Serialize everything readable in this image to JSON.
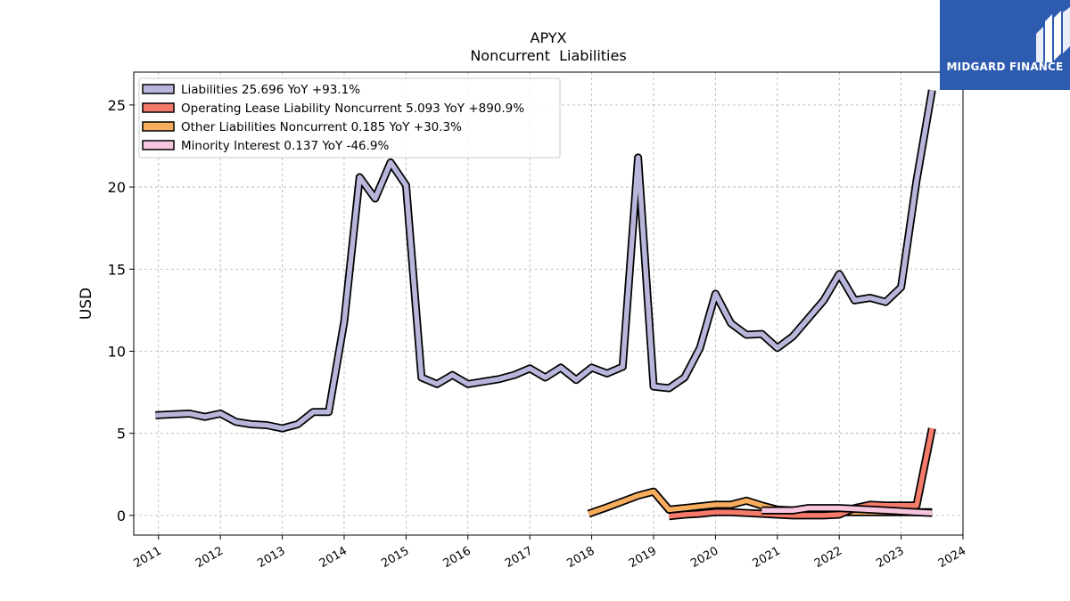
{
  "chart_data": {
    "type": "line",
    "title": "APYX",
    "subtitle": "Noncurrent  Liabilities",
    "ylabel": "USD",
    "xlabel": "",
    "xlim": [
      2010.6,
      2024.0
    ],
    "ylim": [
      -1.2,
      27.0
    ],
    "yticks": [
      0,
      5,
      10,
      15,
      20,
      25
    ],
    "xticks": [
      2011,
      2012,
      2013,
      2014,
      2015,
      2016,
      2017,
      2018,
      2019,
      2020,
      2021,
      2022,
      2023,
      2024
    ],
    "grid": true,
    "legend_position": "top-left",
    "series": [
      {
        "name": "Liabilities",
        "legend": "Liabilities  25.696 YoY +93.1%",
        "color": "#b8b6da",
        "points": [
          [
            2010.95,
            6.1
          ],
          [
            2011.2,
            6.15
          ],
          [
            2011.5,
            6.2
          ],
          [
            2011.75,
            6.0
          ],
          [
            2012.0,
            6.2
          ],
          [
            2012.25,
            5.7
          ],
          [
            2012.5,
            5.55
          ],
          [
            2012.75,
            5.5
          ],
          [
            2013.0,
            5.3
          ],
          [
            2013.25,
            5.55
          ],
          [
            2013.5,
            6.3
          ],
          [
            2013.75,
            6.3
          ],
          [
            2014.0,
            11.8
          ],
          [
            2014.25,
            20.6
          ],
          [
            2014.5,
            19.3
          ],
          [
            2014.75,
            21.5
          ],
          [
            2015.0,
            20.1
          ],
          [
            2015.25,
            8.4
          ],
          [
            2015.5,
            8.0
          ],
          [
            2015.75,
            8.55
          ],
          [
            2016.0,
            8.0
          ],
          [
            2016.25,
            8.15
          ],
          [
            2016.5,
            8.3
          ],
          [
            2016.75,
            8.55
          ],
          [
            2017.0,
            8.95
          ],
          [
            2017.25,
            8.4
          ],
          [
            2017.5,
            9.0
          ],
          [
            2017.75,
            8.25
          ],
          [
            2018.0,
            9.0
          ],
          [
            2018.25,
            8.65
          ],
          [
            2018.5,
            9.05
          ],
          [
            2018.75,
            21.8
          ],
          [
            2019.0,
            7.85
          ],
          [
            2019.25,
            7.75
          ],
          [
            2019.5,
            8.4
          ],
          [
            2019.75,
            10.2
          ],
          [
            2020.0,
            13.5
          ],
          [
            2020.25,
            11.7
          ],
          [
            2020.5,
            11.0
          ],
          [
            2020.75,
            11.05
          ],
          [
            2021.0,
            10.2
          ],
          [
            2021.25,
            10.9
          ],
          [
            2021.5,
            12.0
          ],
          [
            2021.75,
            13.1
          ],
          [
            2022.0,
            14.7
          ],
          [
            2022.25,
            13.1
          ],
          [
            2022.5,
            13.25
          ],
          [
            2022.75,
            13.0
          ],
          [
            2023.0,
            13.9
          ],
          [
            2023.25,
            20.4
          ],
          [
            2023.5,
            25.9
          ]
        ]
      },
      {
        "name": "Operating Lease Liability Noncurrent",
        "legend": "Operating Lease Liability Noncurrent  5.093 YoY +890.9%",
        "color": "#f47a6a",
        "points": [
          [
            2019.25,
            -0.05
          ],
          [
            2019.5,
            0.05
          ],
          [
            2019.75,
            0.1
          ],
          [
            2020.0,
            0.2
          ],
          [
            2020.25,
            0.2
          ],
          [
            2020.5,
            0.15
          ],
          [
            2020.75,
            0.1
          ],
          [
            2021.0,
            0.05
          ],
          [
            2021.25,
            0.0
          ],
          [
            2021.5,
            0.0
          ],
          [
            2021.75,
            0.0
          ],
          [
            2022.0,
            0.05
          ],
          [
            2022.25,
            0.45
          ],
          [
            2022.5,
            0.65
          ],
          [
            2022.75,
            0.6
          ],
          [
            2023.0,
            0.6
          ],
          [
            2023.25,
            0.6
          ],
          [
            2023.5,
            5.3
          ]
        ]
      },
      {
        "name": "Other Liabilities Noncurrent",
        "legend": "Other Liabilities Noncurrent  0.185 YoY +30.3%",
        "color": "#f7ad5e",
        "points": [
          [
            2017.95,
            0.1
          ],
          [
            2018.25,
            0.5
          ],
          [
            2018.5,
            0.85
          ],
          [
            2018.75,
            1.2
          ],
          [
            2019.0,
            1.45
          ],
          [
            2019.25,
            0.35
          ],
          [
            2019.5,
            0.45
          ],
          [
            2019.75,
            0.55
          ],
          [
            2020.0,
            0.65
          ],
          [
            2020.25,
            0.65
          ],
          [
            2020.5,
            0.9
          ],
          [
            2020.75,
            0.6
          ],
          [
            2021.0,
            0.35
          ],
          [
            2021.25,
            0.3
          ],
          [
            2021.5,
            0.25
          ],
          [
            2021.75,
            0.2
          ],
          [
            2022.0,
            0.2
          ],
          [
            2022.25,
            0.2
          ],
          [
            2022.5,
            0.2
          ],
          [
            2022.75,
            0.2
          ],
          [
            2023.0,
            0.2
          ],
          [
            2023.25,
            0.2
          ],
          [
            2023.5,
            0.2
          ]
        ]
      },
      {
        "name": "Minority Interest",
        "legend": "Minority Interest  0.137 YoY -46.9%",
        "color": "#f7c5de",
        "points": [
          [
            2020.75,
            0.3
          ],
          [
            2021.0,
            0.3
          ],
          [
            2021.25,
            0.3
          ],
          [
            2021.5,
            0.45
          ],
          [
            2021.75,
            0.45
          ],
          [
            2022.0,
            0.45
          ],
          [
            2022.25,
            0.4
          ],
          [
            2022.5,
            0.35
          ],
          [
            2022.75,
            0.3
          ],
          [
            2023.0,
            0.25
          ],
          [
            2023.25,
            0.2
          ],
          [
            2023.5,
            0.15
          ]
        ]
      }
    ]
  },
  "brand": {
    "name": "MIDGARD FINANCE",
    "color": "#2d5bb0"
  }
}
